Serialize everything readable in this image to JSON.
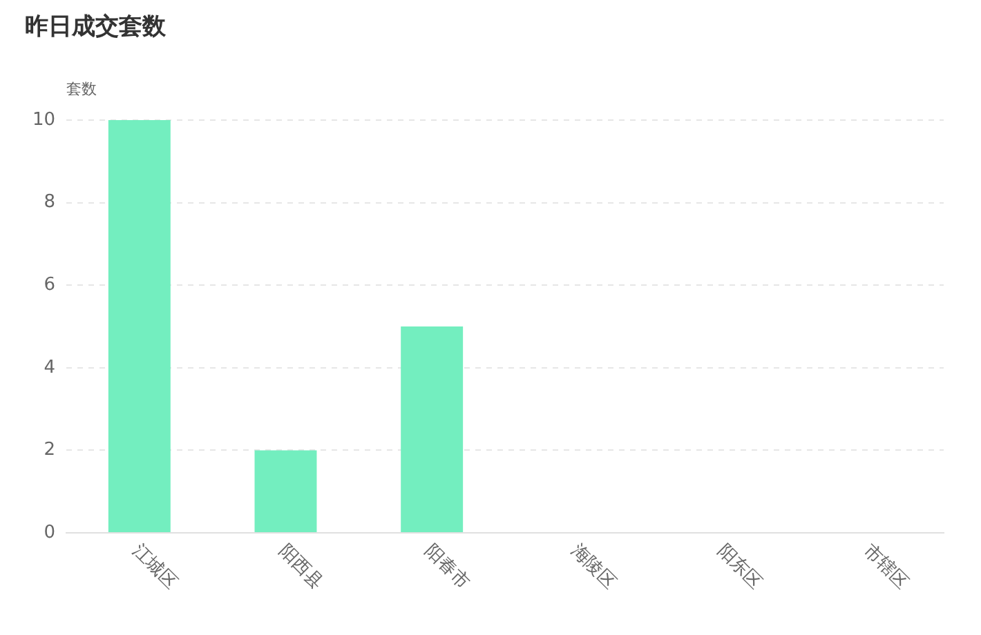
{
  "chart_data": {
    "type": "bar",
    "title": "昨日成交套数",
    "ylabel": "套数",
    "categories": [
      "江城区",
      "阳西县",
      "阳春市",
      "海陵区",
      "阳东区",
      "市辖区"
    ],
    "values": [
      10,
      2,
      5,
      0,
      0,
      0
    ],
    "color": "#73eebf",
    "ylim": [
      0,
      10
    ],
    "yticks": [
      0,
      2,
      4,
      6,
      8,
      10
    ],
    "grid": "y"
  }
}
